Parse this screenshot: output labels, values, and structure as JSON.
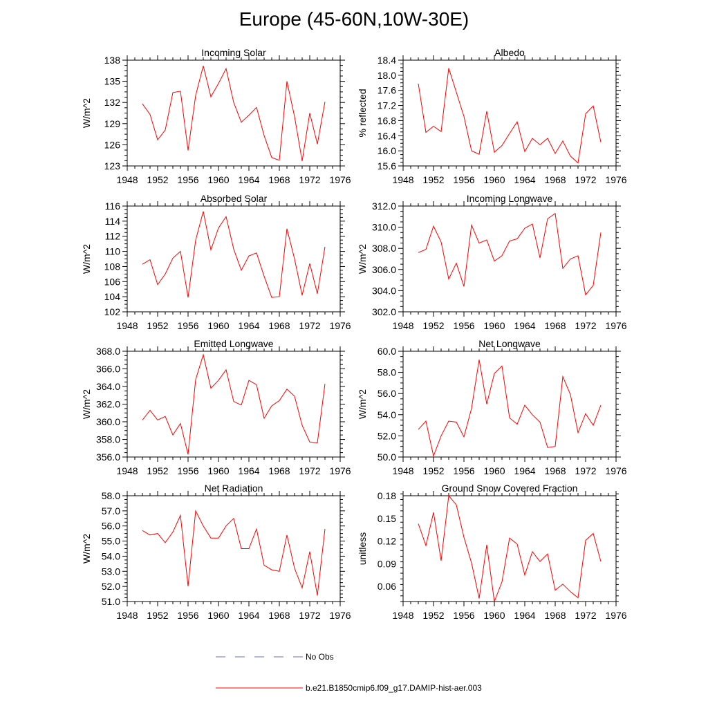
{
  "page": {
    "title": "Europe (45-60N,10W-30E)"
  },
  "legend": {
    "obs_label": "No Obs",
    "obs_color": "#6a6acd",
    "model_label": "b.e21.B1850cmip6.f09_g17.DAMIP-hist-aer.003",
    "model_color": "#ff0000"
  },
  "chart_data": [
    {
      "type": "line",
      "title": "Incoming Solar",
      "xlabel": "",
      "ylabel": "W/m^2",
      "xlim": [
        1948,
        1976
      ],
      "xticks": [
        1948,
        1952,
        1956,
        1960,
        1964,
        1968,
        1972,
        1976
      ],
      "ylim": [
        123,
        138
      ],
      "yticks": [
        123,
        126,
        129,
        132,
        135,
        138
      ],
      "ydecimals": 0,
      "x": [
        1950,
        1951,
        1952,
        1953,
        1954,
        1955,
        1956,
        1957,
        1958,
        1959,
        1960,
        1961,
        1962,
        1963,
        1964,
        1965,
        1966,
        1967,
        1968,
        1969,
        1970,
        1971,
        1972,
        1973,
        1974
      ],
      "series": [
        {
          "name": "b.e21.B1850cmip6.f09_g17.DAMIP-hist-aer.003",
          "color": "#ff0000",
          "values": [
            131.8,
            130.3,
            126.7,
            128.1,
            133.4,
            133.6,
            125.2,
            133.0,
            137.2,
            132.8,
            134.7,
            136.8,
            132.0,
            129.2,
            130.2,
            131.3,
            127.3,
            124.2,
            123.8,
            135.0,
            130.0,
            123.7,
            130.5,
            126.1,
            132.1
          ]
        }
      ]
    },
    {
      "type": "line",
      "title": "Albedo",
      "xlabel": "",
      "ylabel": "% reflected",
      "xlim": [
        1948,
        1976
      ],
      "xticks": [
        1948,
        1952,
        1956,
        1960,
        1964,
        1968,
        1972,
        1976
      ],
      "ylim": [
        15.6,
        18.4
      ],
      "yticks": [
        15.6,
        16.0,
        16.4,
        16.8,
        17.2,
        17.6,
        18.0,
        18.4
      ],
      "ydecimals": 1,
      "x": [
        1950,
        1951,
        1952,
        1953,
        1954,
        1955,
        1956,
        1957,
        1958,
        1959,
        1960,
        1961,
        1962,
        1963,
        1964,
        1965,
        1966,
        1967,
        1968,
        1969,
        1970,
        1971,
        1972,
        1973,
        1974
      ],
      "series": [
        {
          "name": "b.e21.B1850cmip6.f09_g17.DAMIP-hist-aer.003",
          "color": "#ff0000",
          "values": [
            17.78,
            16.49,
            16.65,
            16.51,
            18.19,
            17.55,
            16.91,
            16.0,
            15.91,
            17.05,
            15.96,
            16.14,
            16.46,
            16.77,
            15.98,
            16.33,
            16.16,
            16.33,
            15.93,
            16.26,
            15.86,
            15.68,
            16.98,
            17.19,
            16.23
          ]
        }
      ]
    },
    {
      "type": "line",
      "title": "Absorbed Solar",
      "xlabel": "",
      "ylabel": "W/m^2",
      "xlim": [
        1948,
        1976
      ],
      "xticks": [
        1948,
        1952,
        1956,
        1960,
        1964,
        1968,
        1972,
        1976
      ],
      "ylim": [
        102,
        116
      ],
      "yticks": [
        102,
        104,
        106,
        108,
        110,
        112,
        114,
        116
      ],
      "ydecimals": 0,
      "x": [
        1950,
        1951,
        1952,
        1953,
        1954,
        1955,
        1956,
        1957,
        1958,
        1959,
        1960,
        1961,
        1962,
        1963,
        1964,
        1965,
        1966,
        1967,
        1968,
        1969,
        1970,
        1971,
        1972,
        1973,
        1974
      ],
      "series": [
        {
          "name": "b.e21.B1850cmip6.f09_g17.DAMIP-hist-aer.003",
          "color": "#ff0000",
          "values": [
            108.3,
            108.9,
            105.6,
            107.0,
            109.1,
            110.0,
            103.9,
            111.5,
            115.3,
            110.2,
            113.1,
            114.6,
            110.3,
            107.5,
            109.4,
            109.8,
            106.7,
            103.9,
            104.0,
            113.0,
            109.0,
            104.2,
            108.4,
            104.4,
            110.6
          ]
        }
      ]
    },
    {
      "type": "line",
      "title": "Incoming Longwave",
      "xlabel": "",
      "ylabel": "W/m^2",
      "xlim": [
        1948,
        1976
      ],
      "xticks": [
        1948,
        1952,
        1956,
        1960,
        1964,
        1968,
        1972,
        1976
      ],
      "ylim": [
        302.0,
        312.0
      ],
      "yticks": [
        302.0,
        304.0,
        306.0,
        308.0,
        310.0,
        312.0
      ],
      "ydecimals": 1,
      "x": [
        1950,
        1951,
        1952,
        1953,
        1954,
        1955,
        1956,
        1957,
        1958,
        1959,
        1960,
        1961,
        1962,
        1963,
        1964,
        1965,
        1966,
        1967,
        1968,
        1969,
        1970,
        1971,
        1972,
        1973,
        1974
      ],
      "series": [
        {
          "name": "b.e21.B1850cmip6.f09_g17.DAMIP-hist-aer.003",
          "color": "#ff0000",
          "values": [
            307.6,
            307.9,
            310.1,
            308.6,
            305.1,
            306.6,
            304.4,
            310.2,
            308.5,
            308.8,
            306.8,
            307.3,
            308.7,
            308.9,
            309.9,
            310.3,
            307.1,
            310.8,
            311.3,
            306.1,
            307.0,
            307.3,
            303.6,
            304.5,
            309.5
          ]
        }
      ]
    },
    {
      "type": "line",
      "title": "Emitted Longwave",
      "xlabel": "",
      "ylabel": "W/m^2",
      "xlim": [
        1948,
        1976
      ],
      "xticks": [
        1948,
        1952,
        1956,
        1960,
        1964,
        1968,
        1972,
        1976
      ],
      "ylim": [
        356.0,
        368.0
      ],
      "yticks": [
        356.0,
        358.0,
        360.0,
        362.0,
        364.0,
        366.0,
        368.0
      ],
      "ydecimals": 1,
      "x": [
        1950,
        1951,
        1952,
        1953,
        1954,
        1955,
        1956,
        1957,
        1958,
        1959,
        1960,
        1961,
        1962,
        1963,
        1964,
        1965,
        1966,
        1967,
        1968,
        1969,
        1970,
        1971,
        1972,
        1973,
        1974
      ],
      "series": [
        {
          "name": "b.e21.B1850cmip6.f09_g17.DAMIP-hist-aer.003",
          "color": "#ff0000",
          "values": [
            360.2,
            361.3,
            360.2,
            360.6,
            358.5,
            359.8,
            356.3,
            364.8,
            367.6,
            363.8,
            364.7,
            365.9,
            362.3,
            361.9,
            364.7,
            364.2,
            360.4,
            361.8,
            362.4,
            363.7,
            362.9,
            359.6,
            357.7,
            357.6,
            364.3
          ]
        }
      ]
    },
    {
      "type": "line",
      "title": "Net Longwave",
      "xlabel": "",
      "ylabel": "W/m^2",
      "xlim": [
        1948,
        1976
      ],
      "xticks": [
        1948,
        1952,
        1956,
        1960,
        1964,
        1968,
        1972,
        1976
      ],
      "ylim": [
        50.0,
        60.0
      ],
      "yticks": [
        50.0,
        52.0,
        54.0,
        56.0,
        58.0,
        60.0
      ],
      "ydecimals": 1,
      "x": [
        1950,
        1951,
        1952,
        1953,
        1954,
        1955,
        1956,
        1957,
        1958,
        1959,
        1960,
        1961,
        1962,
        1963,
        1964,
        1965,
        1966,
        1967,
        1968,
        1969,
        1970,
        1971,
        1972,
        1973,
        1974
      ],
      "series": [
        {
          "name": "b.e21.B1850cmip6.f09_g17.DAMIP-hist-aer.003",
          "color": "#ff0000",
          "values": [
            52.6,
            53.4,
            50.1,
            52.0,
            53.4,
            53.3,
            51.9,
            54.6,
            59.2,
            55.0,
            57.9,
            58.6,
            53.7,
            53.1,
            54.9,
            54.0,
            53.3,
            50.9,
            51.0,
            57.6,
            55.9,
            52.3,
            54.1,
            53.0,
            54.9
          ]
        }
      ]
    },
    {
      "type": "line",
      "title": "Net Radiation",
      "xlabel": "",
      "ylabel": "W/m^2",
      "xlim": [
        1948,
        1976
      ],
      "xticks": [
        1948,
        1952,
        1956,
        1960,
        1964,
        1968,
        1972,
        1976
      ],
      "ylim": [
        51.0,
        58.0
      ],
      "yticks": [
        51.0,
        52.0,
        53.0,
        54.0,
        55.0,
        56.0,
        57.0,
        58.0
      ],
      "ydecimals": 1,
      "x": [
        1950,
        1951,
        1952,
        1953,
        1954,
        1955,
        1956,
        1957,
        1958,
        1959,
        1960,
        1961,
        1962,
        1963,
        1964,
        1965,
        1966,
        1967,
        1968,
        1969,
        1970,
        1971,
        1972,
        1973,
        1974
      ],
      "series": [
        {
          "name": "b.e21.B1850cmip6.f09_g17.DAMIP-hist-aer.003",
          "color": "#ff0000",
          "values": [
            55.7,
            55.4,
            55.5,
            54.9,
            55.6,
            56.7,
            52.0,
            57.0,
            56.0,
            55.2,
            55.2,
            56.0,
            56.5,
            54.5,
            54.5,
            55.8,
            53.4,
            53.1,
            53.0,
            55.4,
            53.2,
            51.9,
            54.3,
            51.4,
            55.8
          ]
        }
      ]
    },
    {
      "type": "line",
      "title": "Ground Snow Covered Fraction",
      "xlabel": "",
      "ylabel": "unitless",
      "xlim": [
        1948,
        1976
      ],
      "xticks": [
        1948,
        1952,
        1956,
        1960,
        1964,
        1968,
        1972,
        1976
      ],
      "ylim": [
        0.04,
        0.18
      ],
      "yticks": [
        0.06,
        0.09,
        0.12,
        0.15,
        0.18
      ],
      "ydecimals": 2,
      "x": [
        1950,
        1951,
        1952,
        1953,
        1954,
        1955,
        1956,
        1957,
        1958,
        1959,
        1960,
        1961,
        1962,
        1963,
        1964,
        1965,
        1966,
        1967,
        1968,
        1969,
        1970,
        1971,
        1972,
        1973,
        1974
      ],
      "series": [
        {
          "name": "b.e21.B1850cmip6.f09_g17.DAMIP-hist-aer.003",
          "color": "#ff0000",
          "values": [
            0.143,
            0.114,
            0.158,
            0.094,
            0.18,
            0.168,
            0.125,
            0.091,
            0.044,
            0.115,
            0.04,
            0.066,
            0.124,
            0.116,
            0.075,
            0.106,
            0.093,
            0.103,
            0.055,
            0.063,
            0.053,
            0.045,
            0.121,
            0.13,
            0.093
          ]
        }
      ]
    }
  ]
}
